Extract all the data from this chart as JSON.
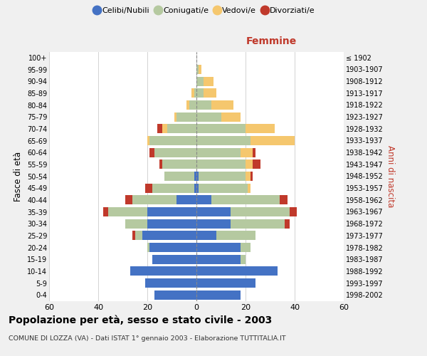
{
  "age_groups": [
    "0-4",
    "5-9",
    "10-14",
    "15-19",
    "20-24",
    "25-29",
    "30-34",
    "35-39",
    "40-44",
    "45-49",
    "50-54",
    "55-59",
    "60-64",
    "65-69",
    "70-74",
    "75-79",
    "80-84",
    "85-89",
    "90-94",
    "95-99",
    "100+"
  ],
  "birth_years": [
    "1998-2002",
    "1993-1997",
    "1988-1992",
    "1983-1987",
    "1978-1982",
    "1973-1977",
    "1968-1972",
    "1963-1967",
    "1958-1962",
    "1953-1957",
    "1948-1952",
    "1943-1947",
    "1938-1942",
    "1933-1937",
    "1928-1932",
    "1923-1927",
    "1918-1922",
    "1913-1917",
    "1908-1912",
    "1903-1907",
    "≤ 1902"
  ],
  "males_celibi": [
    17,
    21,
    27,
    18,
    19,
    22,
    20,
    20,
    8,
    1,
    1,
    0,
    0,
    0,
    0,
    0,
    0,
    0,
    0,
    0,
    0
  ],
  "males_coniugati": [
    0,
    0,
    0,
    0,
    1,
    3,
    9,
    16,
    18,
    17,
    12,
    14,
    17,
    19,
    12,
    8,
    3,
    1,
    0,
    0,
    0
  ],
  "males_vedovi": [
    0,
    0,
    0,
    0,
    0,
    0,
    0,
    0,
    0,
    0,
    0,
    0,
    0,
    1,
    2,
    1,
    1,
    1,
    0,
    0,
    0
  ],
  "males_divorziati": [
    0,
    0,
    0,
    0,
    0,
    1,
    0,
    2,
    3,
    3,
    0,
    1,
    2,
    0,
    2,
    0,
    0,
    0,
    0,
    0,
    0
  ],
  "females_celibi": [
    18,
    24,
    33,
    18,
    18,
    8,
    14,
    14,
    6,
    1,
    1,
    0,
    0,
    0,
    0,
    0,
    0,
    0,
    0,
    0,
    0
  ],
  "females_coniugati": [
    0,
    0,
    0,
    2,
    4,
    16,
    22,
    24,
    28,
    20,
    19,
    20,
    18,
    22,
    20,
    10,
    6,
    3,
    3,
    1,
    0
  ],
  "females_vedovi": [
    0,
    0,
    0,
    0,
    0,
    0,
    0,
    0,
    0,
    1,
    2,
    3,
    5,
    18,
    12,
    8,
    9,
    5,
    4,
    1,
    0
  ],
  "females_divorziati": [
    0,
    0,
    0,
    0,
    0,
    0,
    2,
    3,
    3,
    0,
    1,
    3,
    1,
    0,
    0,
    0,
    0,
    0,
    0,
    0,
    0
  ],
  "colors": {
    "celibi": "#4472C4",
    "coniugati": "#b5c9a0",
    "vedovi": "#f5c76e",
    "divorziati": "#c0392b"
  },
  "title": "Popolazione per età, sesso e stato civile - 2003",
  "subtitle": "COMUNE DI LOZZA (VA) - Dati ISTAT 1° gennaio 2003 - Elaborazione TUTTITALIA.IT",
  "xlabel_right": "Femmine",
  "ylabel_left": "Fasce di età",
  "ylabel_right": "Anni di nascita",
  "xlim": 60,
  "bg_color": "#f0f0f0",
  "plot_bg": "#ffffff",
  "legend_labels": [
    "Celibi/Nubili",
    "Coniugati/e",
    "Vedovi/e",
    "Divorziati/e"
  ]
}
